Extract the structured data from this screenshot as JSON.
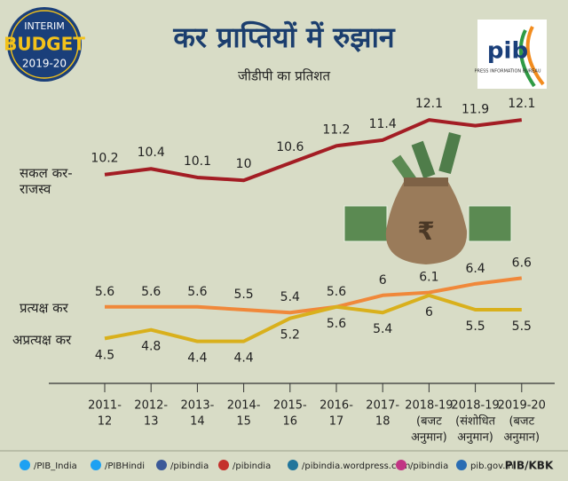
{
  "badge": {
    "line1": "INTERIM",
    "line2": "BUDGET",
    "line3": "2019-20"
  },
  "logo": {
    "text": "pib",
    "caption": "PRESS INFORMATION BUREAU"
  },
  "chart_data": {
    "type": "line",
    "title": "कर प्राप्तियों में रुझान",
    "subtitle": "जीडीपी का प्रतिशत",
    "categories": [
      [
        "2011-",
        "12"
      ],
      [
        "2012-",
        "13"
      ],
      [
        "2013-",
        "14"
      ],
      [
        "2014-",
        "15"
      ],
      [
        "2015-",
        "16"
      ],
      [
        "2016-",
        "17"
      ],
      [
        "2017-",
        "18"
      ],
      [
        "2018-19",
        "(बजट",
        "अनुमान)"
      ],
      [
        "2018-19",
        "(संशोधित",
        "अनुमान)"
      ],
      [
        "2019-20",
        "(बजट",
        "अनुमान)"
      ]
    ],
    "ylim": [
      3,
      13
    ],
    "series": [
      {
        "name": "सकल कर-राजस्व",
        "color": "#a31d24",
        "values": [
          10.2,
          10.4,
          10.1,
          10.0,
          10.6,
          11.2,
          11.4,
          12.1,
          11.9,
          12.1
        ]
      },
      {
        "name": "प्रत्यक्ष कर",
        "color": "#f0883a",
        "values": [
          5.6,
          5.6,
          5.6,
          5.5,
          5.4,
          5.6,
          6.0,
          6.1,
          6.4,
          6.6
        ]
      },
      {
        "name": "अप्रत्यक्ष कर",
        "color": "#d9b01c",
        "values": [
          4.5,
          4.8,
          4.4,
          4.4,
          5.2,
          5.6,
          5.4,
          6.0,
          5.5,
          5.5
        ]
      }
    ]
  },
  "footer": [
    "/PIB_India",
    "/PIBHindi",
    "/pibindia",
    "/pibindia",
    "/pibindia.wordpress.com",
    "/pibindia",
    "pib.gov.in",
    "PIB/KBK"
  ]
}
